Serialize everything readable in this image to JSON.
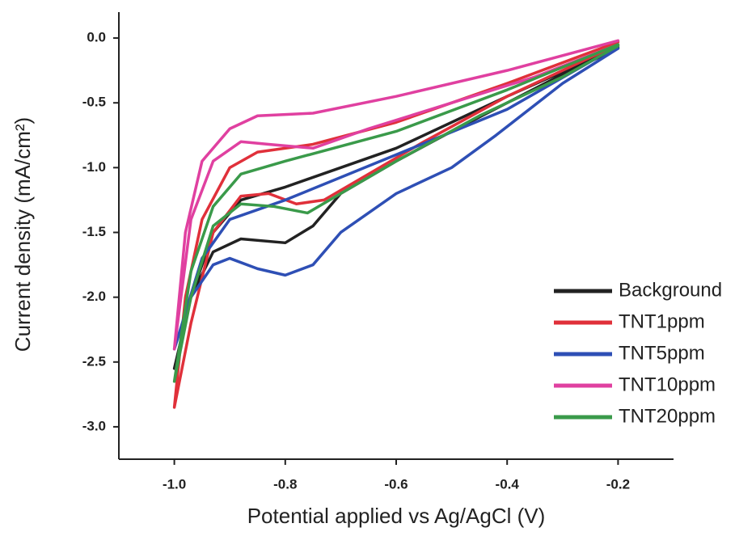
{
  "chart_data": {
    "type": "line",
    "xlabel": "Potential applied vs Ag/AgCl (V)",
    "ylabel": "Current density (mA/cm²)",
    "xlim": [
      -1.1,
      -0.1
    ],
    "ylim": [
      -3.25,
      0.2
    ],
    "xticks": [
      {
        "value": -1.0,
        "label": "-1.0"
      },
      {
        "value": -0.8,
        "label": "-0.8"
      },
      {
        "value": -0.6,
        "label": "-0.6"
      },
      {
        "value": -0.4,
        "label": "-0.4"
      },
      {
        "value": -0.2,
        "label": "-0.2"
      }
    ],
    "yticks": [
      {
        "value": 0.0,
        "label": "0.0"
      },
      {
        "value": -0.5,
        "label": "-0.5"
      },
      {
        "value": -1.0,
        "label": "-1.0"
      },
      {
        "value": -1.5,
        "label": "-1.5"
      },
      {
        "value": -2.0,
        "label": "-2.0"
      },
      {
        "value": -2.5,
        "label": "-2.5"
      },
      {
        "value": -3.0,
        "label": "-3.0"
      }
    ],
    "legend": "lower right",
    "series": [
      {
        "name": "Background",
        "color": "#222222",
        "x": [
          -0.2,
          -0.4,
          -0.6,
          -0.8,
          -0.88,
          -0.93,
          -0.97,
          -1.0,
          -0.97,
          -0.93,
          -0.88,
          -0.8,
          -0.75,
          -0.7,
          -0.6,
          -0.5,
          -0.4,
          -0.3,
          -0.2
        ],
        "values": [
          -0.07,
          -0.45,
          -0.85,
          -1.15,
          -1.25,
          -1.5,
          -2.0,
          -2.55,
          -2.0,
          -1.65,
          -1.55,
          -1.58,
          -1.45,
          -1.2,
          -0.95,
          -0.72,
          -0.5,
          -0.28,
          -0.08
        ]
      },
      {
        "name": "TNT1ppm",
        "color": "#e0303a",
        "x": [
          -0.2,
          -0.4,
          -0.6,
          -0.75,
          -0.85,
          -0.9,
          -0.95,
          -0.98,
          -1.0,
          -0.97,
          -0.93,
          -0.88,
          -0.83,
          -0.78,
          -0.73,
          -0.65,
          -0.55,
          -0.4,
          -0.2
        ],
        "values": [
          -0.03,
          -0.35,
          -0.65,
          -0.82,
          -0.88,
          -1.0,
          -1.4,
          -2.0,
          -2.85,
          -2.2,
          -1.5,
          -1.22,
          -1.2,
          -1.28,
          -1.25,
          -1.05,
          -0.8,
          -0.45,
          -0.05
        ]
      },
      {
        "name": "TNT5ppm",
        "color": "#2e4fb5",
        "x": [
          -0.2,
          -0.4,
          -0.6,
          -0.8,
          -0.9,
          -0.95,
          -1.0,
          -0.97,
          -0.93,
          -0.9,
          -0.85,
          -0.8,
          -0.75,
          -0.7,
          -0.6,
          -0.5,
          -0.42,
          -0.3,
          -0.2
        ],
        "values": [
          -0.06,
          -0.55,
          -0.9,
          -1.25,
          -1.4,
          -1.7,
          -2.4,
          -2.0,
          -1.75,
          -1.7,
          -1.78,
          -1.83,
          -1.75,
          -1.5,
          -1.2,
          -1.0,
          -0.75,
          -0.35,
          -0.08
        ]
      },
      {
        "name": "TNT10ppm",
        "color": "#e040a0",
        "x": [
          -0.2,
          -0.4,
          -0.6,
          -0.75,
          -0.85,
          -0.9,
          -0.95,
          -0.98,
          -1.0,
          -0.97,
          -0.93,
          -0.88,
          -0.83,
          -0.75,
          -0.65,
          -0.5,
          -0.35,
          -0.2
        ],
        "values": [
          -0.02,
          -0.25,
          -0.45,
          -0.58,
          -0.6,
          -0.7,
          -0.95,
          -1.5,
          -2.4,
          -1.4,
          -0.95,
          -0.8,
          -0.82,
          -0.85,
          -0.7,
          -0.5,
          -0.3,
          -0.05
        ]
      },
      {
        "name": "TNT20ppm",
        "color": "#3a9a4a",
        "x": [
          -0.2,
          -0.4,
          -0.6,
          -0.8,
          -0.88,
          -0.93,
          -0.97,
          -1.0,
          -0.97,
          -0.93,
          -0.88,
          -0.82,
          -0.76,
          -0.7,
          -0.6,
          -0.45,
          -0.3,
          -0.2
        ],
        "values": [
          -0.05,
          -0.4,
          -0.72,
          -0.95,
          -1.05,
          -1.3,
          -1.8,
          -2.65,
          -2.0,
          -1.45,
          -1.28,
          -1.3,
          -1.35,
          -1.2,
          -0.95,
          -0.6,
          -0.3,
          -0.06
        ]
      }
    ]
  }
}
